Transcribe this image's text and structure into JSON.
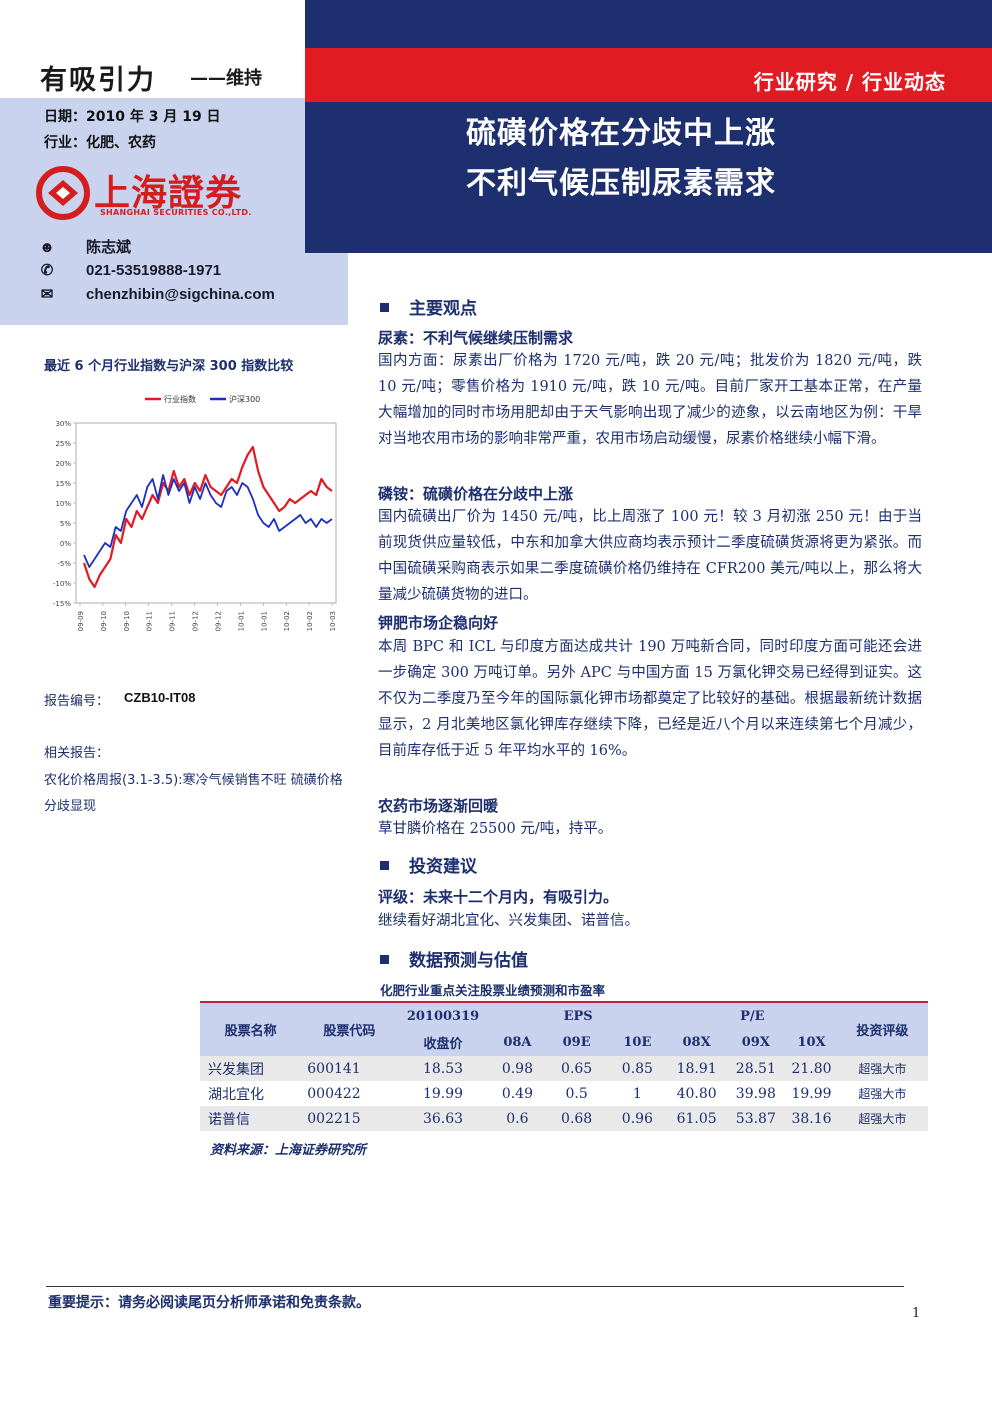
{
  "rating_title": "有吸引力",
  "rating_sub": "——维持",
  "date_line": "日期：2010 年 3 月 19 日",
  "industry_line": "行业：化肥、农药",
  "logo": {
    "cn": "上海證券",
    "en": "SHANGHAI SECURITIES CO.,LTD."
  },
  "analyst": {
    "name": "陈志斌",
    "phone": "021-53519888-1971",
    "email": "chenzhibin@sigchina.com"
  },
  "header": {
    "category": "行业研究 / 行业动态",
    "headline_1": "硫磺价格在分歧中上涨",
    "headline_2": "不利气候压制尿素需求"
  },
  "chart_title": "最近 6 个月行业指数与沪深 300 指数比较",
  "chart_data": {
    "type": "line",
    "title": "",
    "legend": [
      "行业指数",
      "沪深300"
    ],
    "legend_position": "top",
    "yticks": [
      "30%",
      "25%",
      "20%",
      "15%",
      "10%",
      "5%",
      "0%",
      "-5%",
      "-10%",
      "-15%"
    ],
    "ylim": [
      -15,
      30
    ],
    "xticks": [
      "09-09",
      "09-10",
      "09-10",
      "09-11",
      "09-11",
      "09-12",
      "09-12",
      "10-01",
      "10-01",
      "10-02",
      "10-02",
      "10-03"
    ],
    "series": [
      {
        "name": "行业指数",
        "color": "#e11b22",
        "values": [
          -5,
          -9,
          -11,
          -8,
          -6,
          -4,
          2,
          0,
          6,
          4,
          8,
          6,
          9,
          12,
          10,
          15,
          13,
          18,
          14,
          16,
          12,
          15,
          13,
          17,
          14,
          13,
          12,
          14,
          16,
          15,
          19,
          22,
          24,
          18,
          14,
          12,
          10,
          8,
          9,
          11,
          10,
          11,
          12,
          13,
          12,
          16,
          14,
          13
        ]
      },
      {
        "name": "沪深300",
        "color": "#1d2fbf",
        "values": [
          -3,
          -6,
          -4,
          -2,
          0,
          -1,
          4,
          3,
          8,
          10,
          12,
          9,
          14,
          16,
          11,
          17,
          12,
          16,
          13,
          15,
          10,
          14,
          11,
          15,
          12,
          10,
          9,
          13,
          14,
          12,
          15,
          14,
          11,
          7,
          5,
          4,
          6,
          3,
          4,
          5,
          6,
          7,
          5,
          6,
          4,
          6,
          5,
          6
        ]
      }
    ]
  },
  "report_no_label": "报告编号：",
  "report_no": "CZB10-IT08",
  "related_label": "相关报告：",
  "related_text": "农化价格周报(3.1-3.5):寒冷气候销售不旺 硫磺价格分歧显现",
  "main": {
    "section_1": "主要观点",
    "urea_h": "尿素：不利气候继续压制需求",
    "urea_p": "国内方面：尿素出厂价格为 1720 元/吨，跌 20 元/吨；批发价为 1820 元/吨，跌 10 元/吨；零售价格为 1910 元/吨，跌 10 元/吨。目前厂家开工基本正常，在产量大幅增加的同时市场用肥却由于天气影响出现了减少的迹象，以云南地区为例：干旱对当地农用市场的影响非常严重，农用市场启动缓慢，尿素价格继续小幅下滑。",
    "amm_h": "磷铵：硫磺价格在分歧中上涨",
    "amm_p": "国内硫磺出厂价为 1450 元/吨，比上周涨了 100 元！较 3 月初涨 250 元！由于当前现货供应量较低，中东和加拿大供应商均表示预计二季度硫磺货源将更为紧张。而中国硫磺采购商表示如果二季度硫磺价格仍维持在 CFR200 美元/吨以上，那么将大量减少硫磺货物的进口。",
    "pot_h": "钾肥市场企稳向好",
    "pot_p": "本周 BPC 和 ICL 与印度方面达成共计 190 万吨新合同，同时印度方面可能还会进一步确定 300 万吨订单。另外 APC 与中国方面 15 万氯化钾交易已经得到证实。这不仅为二季度乃至今年的国际氯化钾市场都奠定了比较好的基础。根据最新统计数据显示，2 月北美地区氯化钾库存继续下降，已经是近八个月以来连续第七个月减少，目前库存低于近 5 年平均水平的 16%。",
    "pest_h": "农药市场逐渐回暖",
    "pest_p": "草甘膦价格在 25500 元/吨，持平。",
    "section_2": "投资建议",
    "rating_h": "评级：未来十二个月内，有吸引力。",
    "rating_p": "继续看好湖北宜化、兴发集团、诺普信。",
    "section_3": "数据预测与估值"
  },
  "table": {
    "title": "化肥行业重点关注股票业绩预测和市盈率",
    "h_name": "股票名称",
    "h_code": "股票代码",
    "h_date": "20100319",
    "h_close": "收盘价",
    "h_eps": "EPS",
    "h_pe": "P/E",
    "h_08a": "08A",
    "h_09e": "09E",
    "h_10e": "10E",
    "h_08x": "08X",
    "h_09x": "09X",
    "h_10x": "10X",
    "h_rating": "投资评级",
    "rows": [
      {
        "name": "兴发集团",
        "code": "600141",
        "close": "18.53",
        "e08": "0.98",
        "e09": "0.65",
        "e10": "0.85",
        "p08": "18.91",
        "p09": "28.51",
        "p10": "21.80",
        "rating": "超强大市"
      },
      {
        "name": "湖北宜化",
        "code": "000422",
        "close": "19.99",
        "e08": "0.49",
        "e09": "0.5",
        "e10": "1",
        "p08": "40.80",
        "p09": "39.98",
        "p10": "19.99",
        "rating": "超强大市"
      },
      {
        "name": "诺普信",
        "code": "002215",
        "close": "36.63",
        "e08": "0.6",
        "e09": "0.68",
        "e10": "0.96",
        "p08": "61.05",
        "p09": "53.87",
        "p10": "38.16",
        "rating": "超强大市"
      }
    ]
  },
  "source": "资料来源：上海证券研究所",
  "footer_note": "重要提示：请务必阅读尾页分析师承诺和免责条款。",
  "page_num": "1"
}
